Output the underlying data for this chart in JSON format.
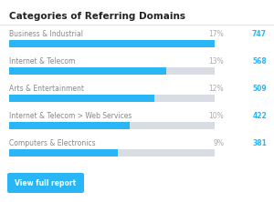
{
  "title": "Categories of Referring Domains",
  "categories": [
    "Business & Industrial",
    "Internet & Telecom",
    "Arts & Entertainment",
    "Internet & Telecom > Web Services",
    "Computers & Electronics"
  ],
  "percentages": [
    17,
    13,
    12,
    10,
    9
  ],
  "counts": [
    747,
    568,
    509,
    422,
    381
  ],
  "max_percent": 17,
  "bar_color": "#29b6f6",
  "bg_bar_color": "#d8dde3",
  "title_color": "#222222",
  "label_color": "#888888",
  "pct_color": "#aaaaaa",
  "count_color": "#29b6f6",
  "bg_color": "#ffffff",
  "button_color": "#29b6f6",
  "button_text": "View full report",
  "button_text_color": "#ffffff",
  "sep_color": "#e0e4e8"
}
